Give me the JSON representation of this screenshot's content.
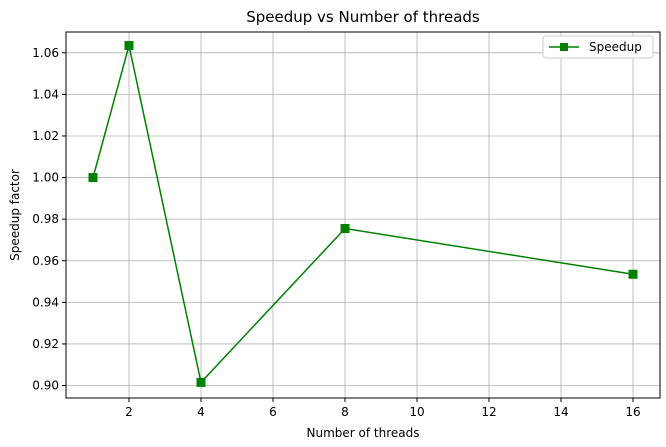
{
  "chart_data": {
    "type": "line",
    "title": "Speedup vs Number of threads",
    "xlabel": "Number of threads",
    "ylabel": "Speedup factor",
    "xlim": [
      0.25,
      16.75
    ],
    "ylim": [
      0.894,
      1.07
    ],
    "x_ticks": [
      2,
      4,
      6,
      8,
      10,
      12,
      14,
      16
    ],
    "y_ticks": [
      0.9,
      0.92,
      0.94,
      0.96,
      0.98,
      1.0,
      1.02,
      1.04,
      1.06
    ],
    "grid": true,
    "legend_position": "top-right",
    "series": [
      {
        "name": "Speedup",
        "color": "#008000",
        "marker": "square",
        "x": [
          1,
          2,
          4,
          8,
          16
        ],
        "y": [
          1.0,
          1.0635,
          0.9015,
          0.9755,
          0.9535
        ]
      }
    ]
  }
}
